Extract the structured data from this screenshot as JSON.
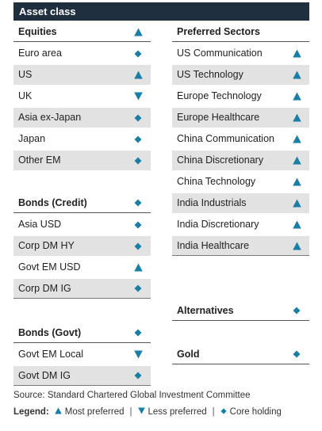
{
  "header": {
    "title": "Asset class"
  },
  "colors": {
    "icon": "#1a7ea6",
    "header_bg": "#1f2f3f",
    "shade": "#e2e2e2"
  },
  "left": [
    {
      "label": "Equities",
      "icon": "up",
      "head": true,
      "shaded": false
    },
    {
      "label": "Euro area",
      "icon": "diamond",
      "shaded": false
    },
    {
      "label": "US",
      "icon": "up",
      "shaded": true
    },
    {
      "label": "UK",
      "icon": "down",
      "shaded": false
    },
    {
      "label": "Asia ex-Japan",
      "icon": "diamond",
      "shaded": true
    },
    {
      "label": "Japan",
      "icon": "diamond",
      "shaded": false
    },
    {
      "label": "Other EM",
      "icon": "diamond",
      "shaded": true
    },
    {
      "label": "Bonds (Credit)",
      "icon": "diamond",
      "head": true,
      "shaded": false
    },
    {
      "label": "Asia USD",
      "icon": "diamond",
      "shaded": false
    },
    {
      "label": "Corp DM HY",
      "icon": "diamond",
      "shaded": true
    },
    {
      "label": "Govt EM USD",
      "icon": "up",
      "shaded": false
    },
    {
      "label": "Corp DM IG",
      "icon": "diamond",
      "shaded": true
    },
    {
      "label": "Bonds (Govt)",
      "icon": "diamond",
      "head": true,
      "shaded": false
    },
    {
      "label": "Govt EM Local",
      "icon": "down",
      "shaded": false
    },
    {
      "label": "Govt DM IG",
      "icon": "diamond",
      "shaded": true
    }
  ],
  "right": [
    {
      "label": "Preferred Sectors",
      "icon": "none",
      "head": true,
      "shaded": false
    },
    {
      "label": "US Communication",
      "icon": "up",
      "shaded": false
    },
    {
      "label": "US Technology",
      "icon": "up",
      "shaded": true
    },
    {
      "label": "Europe Technology",
      "icon": "up",
      "shaded": false
    },
    {
      "label": "Europe Healthcare",
      "icon": "up",
      "shaded": true
    },
    {
      "label": "China Communication",
      "icon": "up",
      "shaded": false
    },
    {
      "label": "China Discretionary",
      "icon": "up",
      "shaded": true
    },
    {
      "label": "China Technology",
      "icon": "up",
      "shaded": false
    },
    {
      "label": "India Industrials",
      "icon": "up",
      "shaded": true
    },
    {
      "label": "India Discretionary",
      "icon": "up",
      "shaded": false
    },
    {
      "label": "India Healthcare",
      "icon": "up",
      "shaded": true
    },
    {
      "label": "Alternatives",
      "icon": "diamond",
      "head": true,
      "shaded": false
    },
    {
      "label": "Gold",
      "icon": "diamond",
      "head": true,
      "shaded": false
    }
  ],
  "footer": {
    "source": "Source: Standard Chartered Global Investment Committee",
    "legend_title": "Legend:",
    "legend_most": "Most preferred",
    "legend_less": "Less preferred",
    "legend_core": "Core holding"
  }
}
